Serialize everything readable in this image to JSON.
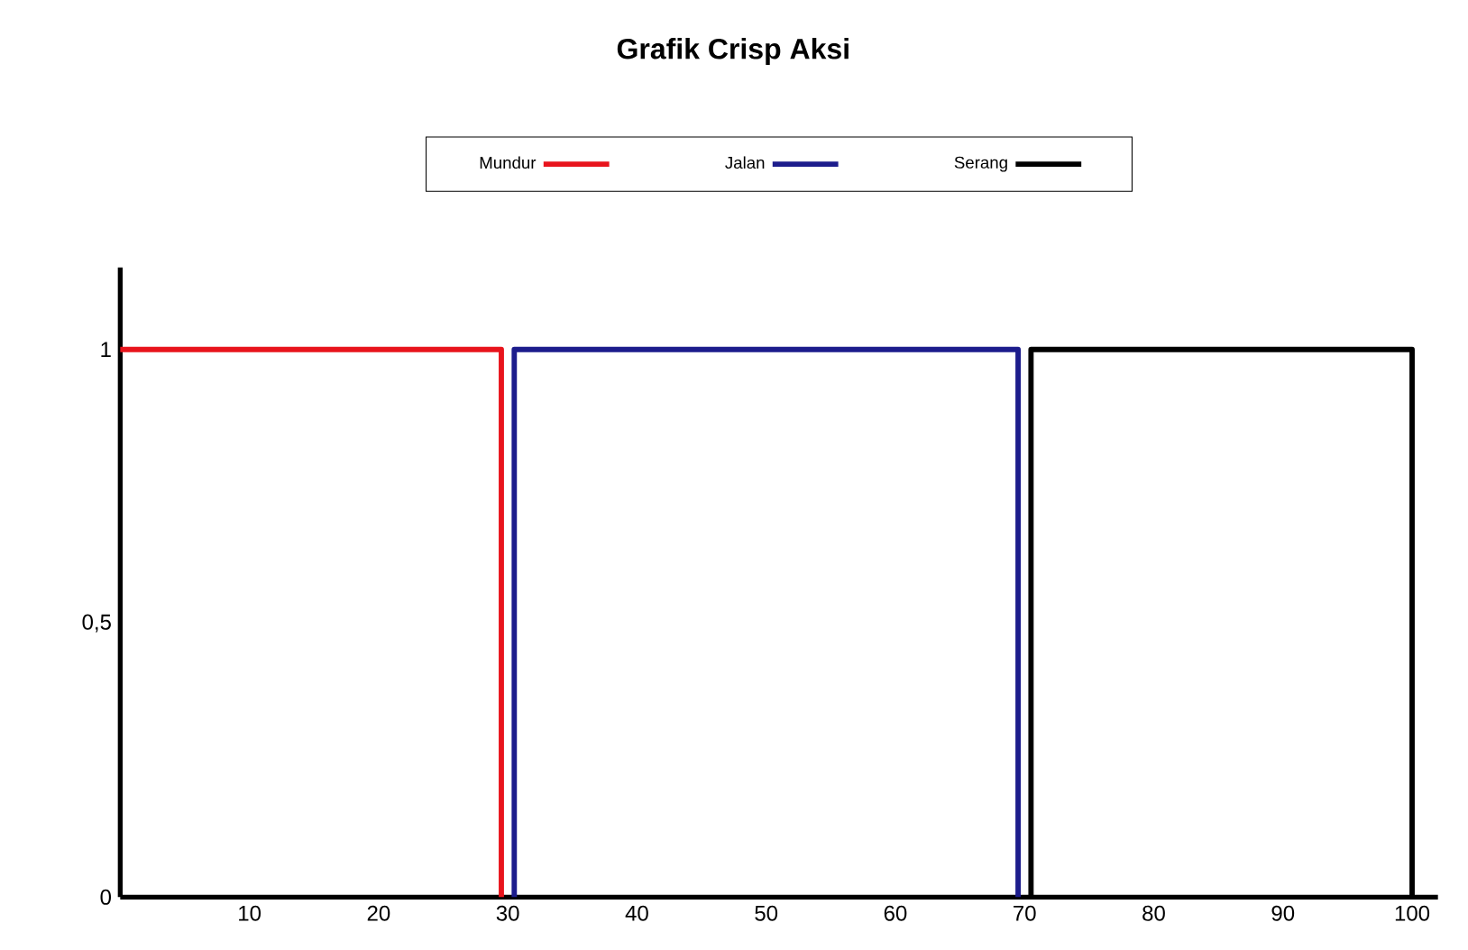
{
  "chart_data": {
    "type": "line",
    "title": "Grafik Crisp Aksi",
    "series": [
      {
        "name": "Mundur",
        "color": "#e8141c",
        "x": [
          0,
          29.5,
          29.5
        ],
        "values": [
          1,
          1,
          0
        ]
      },
      {
        "name": "Jalan",
        "color": "#1c1c8c",
        "x": [
          30.5,
          30.5,
          69.5,
          69.5
        ],
        "values": [
          0,
          1,
          1,
          0
        ]
      },
      {
        "name": "Serang",
        "color": "#000000",
        "x": [
          70.5,
          70.5,
          100,
          100
        ],
        "values": [
          0,
          1,
          1,
          0
        ]
      }
    ],
    "xlim": [
      0,
      102
    ],
    "ylim": [
      0,
      1.15
    ],
    "xticks": [
      10,
      20,
      30,
      40,
      50,
      60,
      70,
      80,
      90,
      100
    ],
    "yticks": [
      0,
      {
        "value": 0.5,
        "label": "0,5"
      },
      1
    ],
    "legend": "top",
    "marker": "none",
    "line_style": "solid",
    "grid": false
  }
}
